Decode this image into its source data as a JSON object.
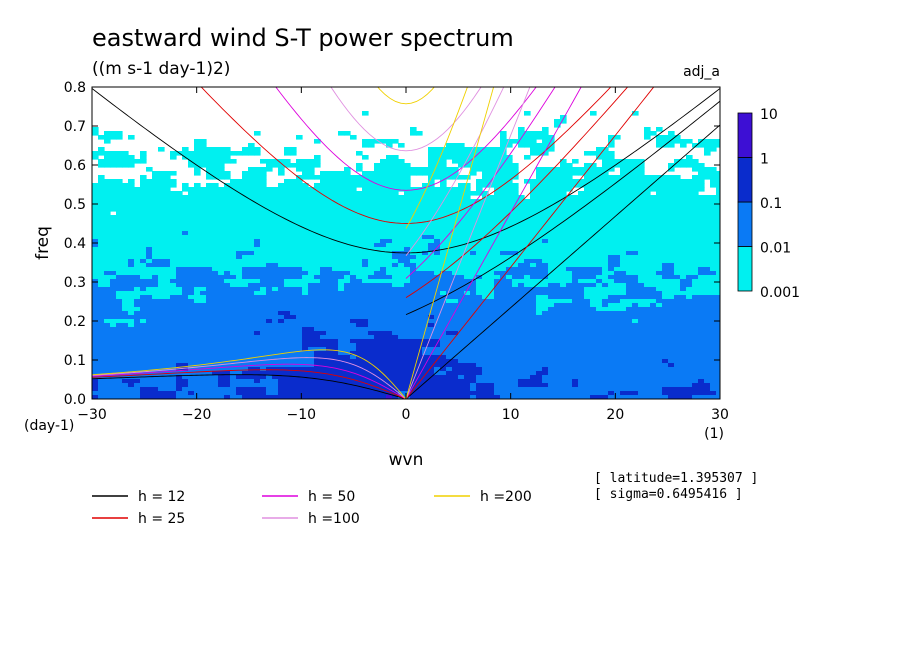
{
  "chart_data": {
    "type": "heatmap",
    "title": "eastward wind S-T power spectrum",
    "subtitle": "((m s-1 day-1)2)",
    "corner_label": "adj_a",
    "xlabel": "wvn",
    "ylabel": "freq",
    "x_unit": "(1)",
    "y_unit": "(day-1)",
    "xlim": [
      -30,
      30
    ],
    "ylim": [
      0,
      0.8
    ],
    "x_ticks": [
      "-30",
      "-20",
      "-10",
      "0",
      "10",
      "20",
      "30"
    ],
    "x_tick_values": [
      -30,
      -20,
      -10,
      0,
      10,
      20,
      30
    ],
    "y_ticks": [
      "0.0",
      "0.1",
      "0.2",
      "0.3",
      "0.4",
      "0.5",
      "0.6",
      "0.7",
      "0.8"
    ],
    "y_tick_values": [
      0,
      0.1,
      0.2,
      0.3,
      0.4,
      0.5,
      0.6,
      0.7,
      0.8
    ],
    "colorbar": {
      "levels": [
        "0.001",
        "0.01",
        "0.1",
        "1",
        "10"
      ],
      "colors": [
        "#00f0f0",
        "#0a7af5",
        "#0a2ccc",
        "#3d0fd4"
      ]
    },
    "dispersion_curves": {
      "equivalent_depths": [
        12,
        25,
        50,
        100,
        200
      ],
      "colors": [
        "#000000",
        "#e00000",
        "#dd00dd",
        "#e090e0",
        "#f0d000"
      ],
      "labels": [
        "h = 12",
        "h = 25",
        "h = 50",
        "h =100",
        "h =200"
      ],
      "latitude": 1.395307
    },
    "legend_placement": "bottom-left",
    "annotations": [
      "[ latitude=1.395307 ]",
      "[ sigma=0.6495416 ]"
    ]
  }
}
